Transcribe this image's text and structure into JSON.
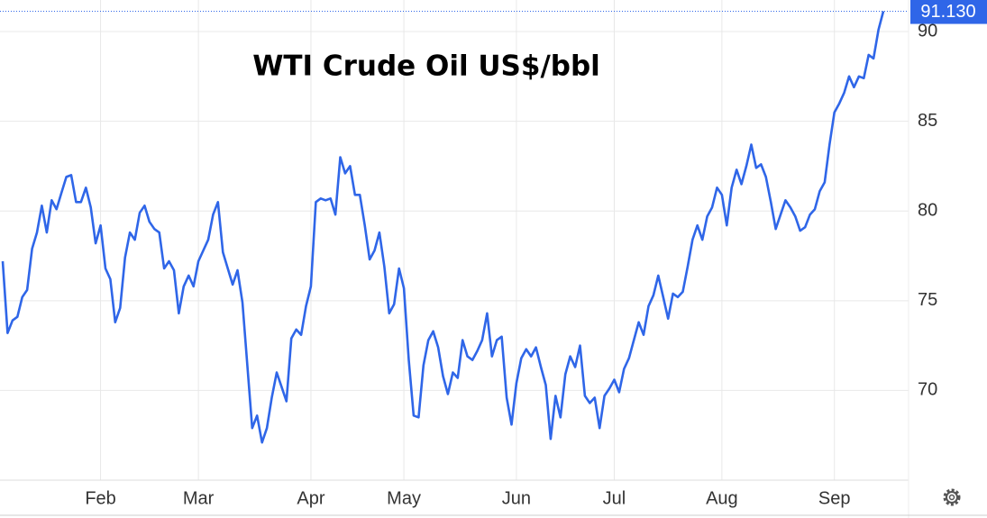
{
  "chart_data": {
    "type": "line",
    "title": "WTI Crude Oil US$/bbl",
    "categories": [
      null,
      null,
      null,
      null,
      null,
      null,
      null,
      null,
      null,
      null,
      null,
      null,
      null,
      null,
      null,
      null,
      null,
      null,
      null,
      null,
      "Feb",
      null,
      null,
      null,
      null,
      null,
      null,
      null,
      null,
      null,
      null,
      null,
      null,
      null,
      null,
      null,
      null,
      null,
      null,
      null,
      "Mar",
      null,
      null,
      null,
      null,
      null,
      null,
      null,
      null,
      null,
      null,
      null,
      null,
      null,
      null,
      null,
      null,
      null,
      null,
      null,
      null,
      null,
      null,
      "Apr",
      null,
      null,
      null,
      null,
      null,
      null,
      null,
      null,
      null,
      null,
      null,
      null,
      null,
      null,
      null,
      null,
      null,
      null,
      "May",
      null,
      null,
      null,
      null,
      null,
      null,
      null,
      null,
      null,
      null,
      null,
      null,
      null,
      null,
      null,
      null,
      null,
      null,
      null,
      null,
      null,
      null,
      "Jun",
      null,
      null,
      null,
      null,
      null,
      null,
      null,
      null,
      null,
      null,
      null,
      null,
      null,
      null,
      null,
      null,
      null,
      null,
      null,
      "Jul",
      null,
      null,
      null,
      null,
      null,
      null,
      null,
      null,
      null,
      null,
      null,
      null,
      null,
      null,
      null,
      null,
      null,
      null,
      null,
      null,
      null,
      "Aug",
      null,
      null,
      null,
      null,
      null,
      null,
      null,
      null,
      null,
      null,
      null,
      null,
      null,
      null,
      null,
      null,
      null,
      null,
      null,
      null,
      null,
      null,
      "Sep",
      null,
      null,
      null,
      null,
      null,
      null,
      null,
      null,
      null,
      null
    ],
    "series": [
      {
        "color": "#2f66e8",
        "values": [
          77.2,
          73.2,
          73.9,
          74.1,
          75.2,
          75.6,
          77.9,
          78.8,
          80.3,
          78.8,
          80.6,
          80.1,
          81.0,
          81.9,
          82.0,
          80.5,
          80.5,
          81.3,
          80.2,
          78.2,
          79.2,
          76.8,
          76.2,
          73.8,
          74.6,
          77.4,
          78.8,
          78.4,
          79.9,
          80.3,
          79.4,
          79.0,
          78.8,
          76.8,
          77.2,
          76.7,
          74.3,
          75.8,
          76.4,
          75.8,
          77.2,
          77.8,
          78.4,
          79.8,
          80.5,
          77.7,
          76.8,
          75.9,
          76.7,
          74.9,
          71.4,
          67.9,
          68.6,
          67.1,
          67.9,
          69.6,
          71.0,
          70.2,
          69.4,
          72.9,
          73.4,
          73.1,
          74.7,
          75.8,
          80.5,
          80.7,
          80.6,
          80.7,
          79.8,
          83.0,
          82.1,
          82.5,
          80.9,
          80.9,
          79.2,
          77.3,
          77.8,
          78.8,
          76.9,
          74.3,
          74.8,
          76.8,
          75.7,
          71.7,
          68.6,
          68.5,
          71.4,
          72.8,
          73.3,
          72.4,
          70.8,
          69.8,
          71.0,
          70.7,
          72.8,
          71.9,
          71.7,
          72.2,
          72.8,
          74.3,
          71.9,
          72.8,
          73.0,
          69.6,
          68.1,
          70.4,
          71.8,
          72.3,
          71.9,
          72.4,
          71.3,
          70.3,
          67.3,
          69.7,
          68.5,
          70.9,
          71.9,
          71.3,
          72.5,
          69.7,
          69.3,
          69.6,
          67.9,
          69.7,
          70.1,
          70.6,
          69.9,
          71.2,
          71.8,
          72.8,
          73.8,
          73.1,
          74.7,
          75.3,
          76.4,
          75.2,
          74.0,
          75.4,
          75.2,
          75.5,
          76.9,
          78.4,
          79.2,
          78.4,
          79.7,
          80.2,
          81.3,
          80.9,
          79.2,
          81.3,
          82.3,
          81.5,
          82.5,
          83.7,
          82.4,
          82.6,
          81.9,
          80.5,
          79.0,
          79.8,
          80.6,
          80.2,
          79.7,
          78.9,
          79.1,
          79.8,
          80.1,
          81.1,
          81.6,
          83.7,
          85.5,
          86.0,
          86.6,
          87.5,
          86.9,
          87.5,
          87.4,
          88.7,
          88.5,
          90.1,
          91.13
        ]
      }
    ],
    "last_price": {
      "value": 91.13,
      "label": "91.130"
    },
    "ylim": [
      65,
      91.76
    ],
    "yticks": [
      70,
      75,
      80,
      85,
      90
    ],
    "grid": true
  }
}
